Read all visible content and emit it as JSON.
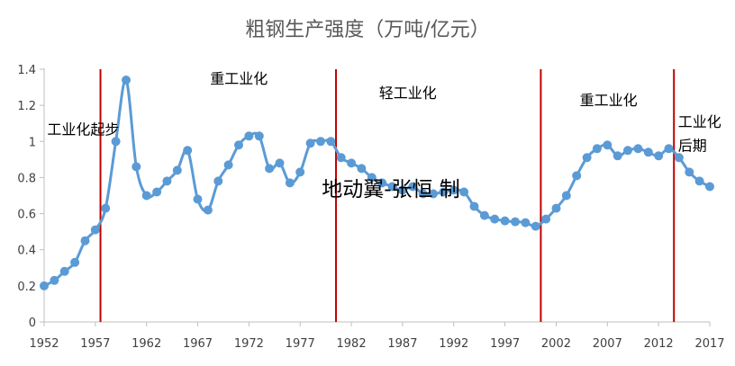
{
  "chart_data": {
    "type": "line",
    "title": "粗钢生产强度（万吨/亿元）",
    "xlabel": "",
    "ylabel": "",
    "ylim": [
      0,
      1.4
    ],
    "yticks": [
      "0",
      "0.2",
      "0.4",
      "0.6",
      "0.8",
      "1",
      "1.2",
      "1.4"
    ],
    "xlim": [
      1952,
      2017
    ],
    "xticks": [
      "1952",
      "1957",
      "1962",
      "1967",
      "1972",
      "1977",
      "1982",
      "1987",
      "1992",
      "1997",
      "2002",
      "2007",
      "2012",
      "2017"
    ],
    "grid": false,
    "legend": "none",
    "series": [
      {
        "color": "#5B9BD5",
        "x": [
          1952,
          1953,
          1954,
          1955,
          1956,
          1957,
          1958,
          1959,
          1960,
          1961,
          1962,
          1963,
          1964,
          1965,
          1966,
          1967,
          1968,
          1969,
          1970,
          1971,
          1972,
          1973,
          1974,
          1975,
          1976,
          1977,
          1978,
          1979,
          1980,
          1981,
          1982,
          1983,
          1984,
          1985,
          1986,
          1987,
          1988,
          1989,
          1990,
          1991,
          1992,
          1993,
          1994,
          1995,
          1996,
          1997,
          1998,
          1999,
          2000,
          2001,
          2002,
          2003,
          2004,
          2005,
          2006,
          2007,
          2008,
          2009,
          2010,
          2011,
          2012,
          2013,
          2014,
          2015,
          2016,
          2017
        ],
        "values": [
          0.2,
          0.23,
          0.28,
          0.33,
          0.45,
          0.51,
          0.63,
          1.0,
          1.34,
          0.86,
          0.7,
          0.72,
          0.78,
          0.84,
          0.95,
          0.68,
          0.62,
          0.78,
          0.87,
          0.98,
          1.03,
          1.03,
          0.85,
          0.88,
          0.77,
          0.83,
          0.99,
          1.0,
          1.0,
          0.91,
          0.88,
          0.85,
          0.8,
          0.77,
          0.75,
          0.73,
          0.75,
          0.71,
          0.71,
          0.72,
          0.73,
          0.72,
          0.64,
          0.59,
          0.57,
          0.56,
          0.555,
          0.55,
          0.53,
          0.57,
          0.63,
          0.7,
          0.81,
          0.91,
          0.96,
          0.98,
          0.92,
          0.95,
          0.96,
          0.94,
          0.92,
          0.96,
          0.91,
          0.83,
          0.78,
          0.75
        ]
      }
    ],
    "divider_color": "#C00000",
    "divider_years": [
      1957.5,
      1980.5,
      2000.5,
      2013.5
    ],
    "phase_labels": [
      {
        "text": "工业化起步",
        "x": 1952.3,
        "y": 1.04
      },
      {
        "text": "重工业化",
        "x": 1968.2,
        "y": 1.32
      },
      {
        "text": "轻工业化",
        "x": 1984.7,
        "y": 1.24
      },
      {
        "text": "重工业化",
        "x": 2004.3,
        "y": 1.2
      },
      {
        "text": "工业化",
        "x": 2013.9,
        "y": 1.08
      },
      {
        "text": "后期",
        "x": 2013.9,
        "y": 0.95
      }
    ],
    "watermark": "地动翼-张恒 制"
  }
}
